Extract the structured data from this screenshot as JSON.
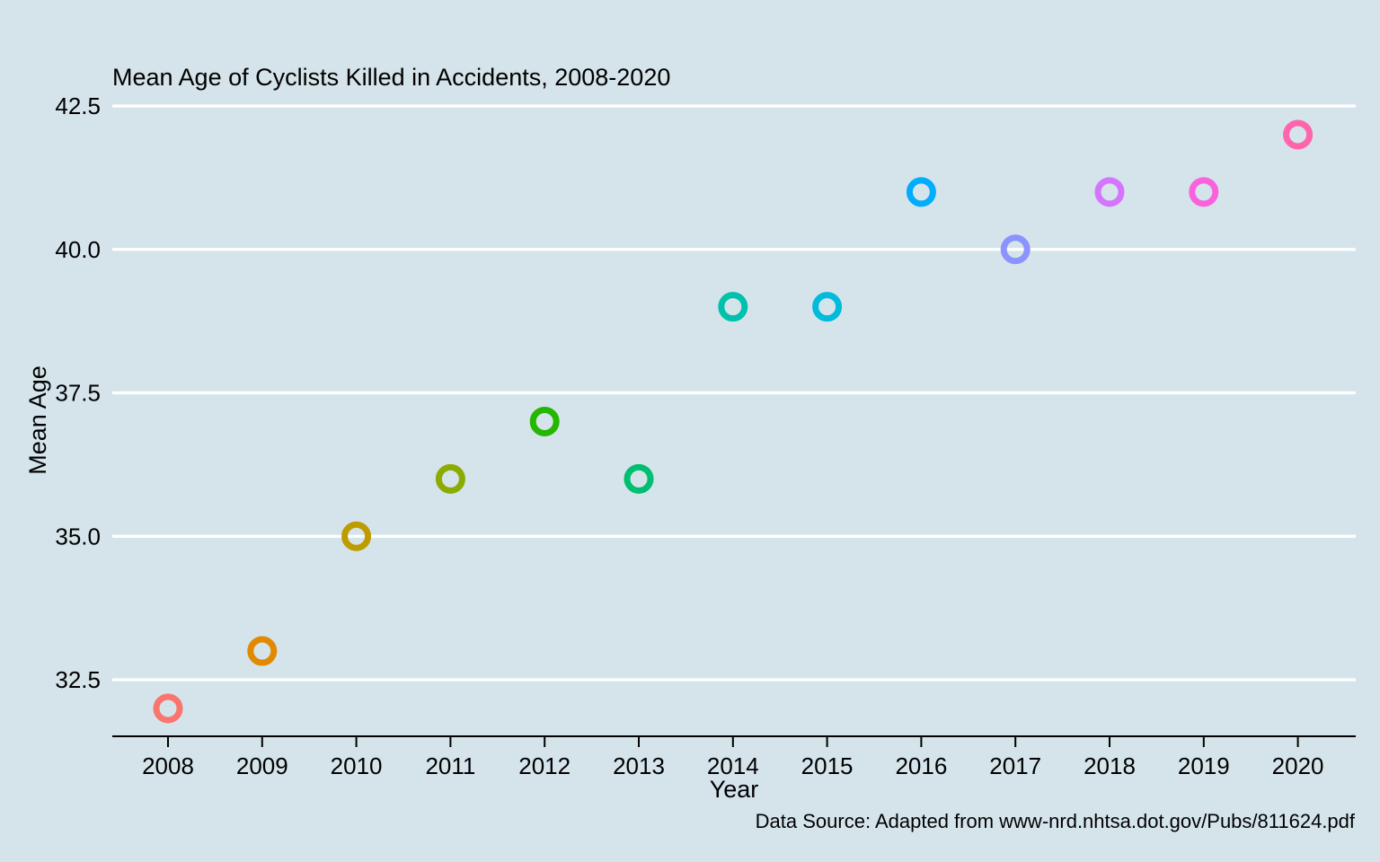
{
  "chart_data": {
    "type": "scatter",
    "title": "Mean Age of Cyclists Killed in Accidents, 2008-2020",
    "xlabel": "Year",
    "ylabel": "Mean Age",
    "caption": "Data Source: Adapted from www-nrd.nhtsa.dot.gov/Pubs/811624.pdf",
    "x": [
      "2008",
      "2009",
      "2010",
      "2011",
      "2012",
      "2013",
      "2014",
      "2015",
      "2016",
      "2017",
      "2018",
      "2019",
      "2020"
    ],
    "y": [
      32,
      33,
      35,
      36,
      37,
      36,
      39,
      39,
      41,
      40,
      41,
      41,
      42
    ],
    "point_colors": [
      "#f8766d",
      "#e18a00",
      "#be9c00",
      "#8cab00",
      "#24b700",
      "#00be70",
      "#00c1ab",
      "#00bbda",
      "#00acfc",
      "#8b93ff",
      "#d575fe",
      "#f962dd",
      "#ff65ac"
    ],
    "yticks": [
      "32.5",
      "35.0",
      "37.5",
      "40.0",
      "42.5"
    ],
    "ylim": [
      31.5,
      43.0
    ],
    "grid": "horizontal",
    "legend": "none",
    "background": "#d5e4eb"
  }
}
